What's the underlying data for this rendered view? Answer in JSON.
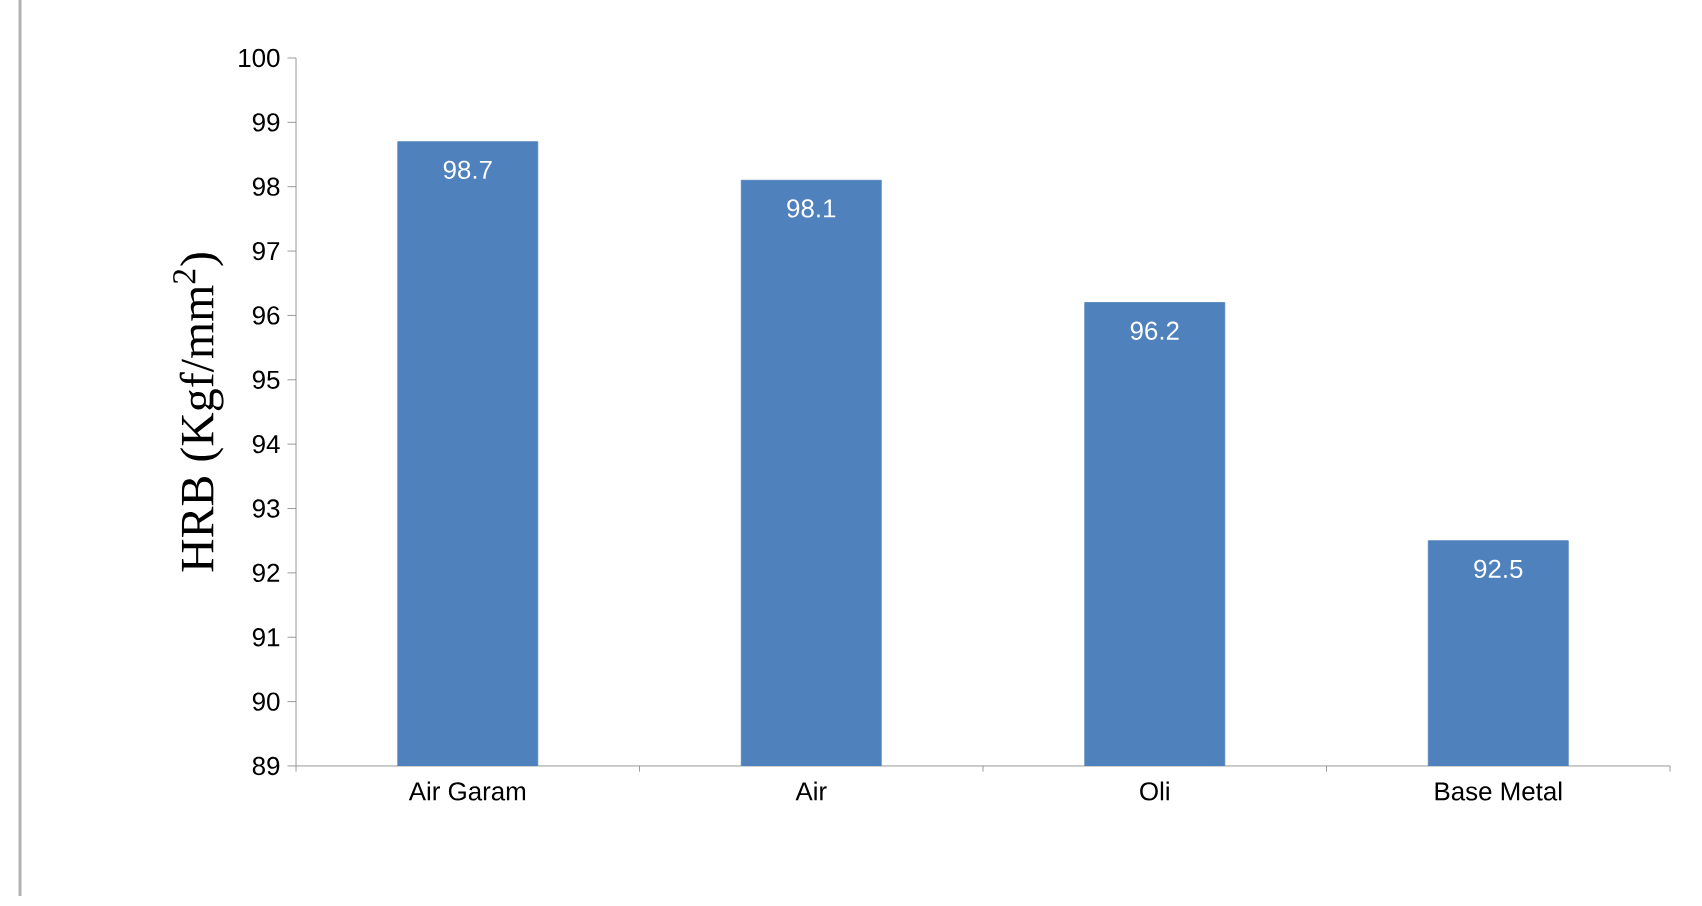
{
  "chart_data": {
    "type": "bar",
    "ylabel": "HRB (Kgf/mm$^{2}$)",
    "categories": [
      "Air Garam",
      "Air",
      "Oli",
      "Base Metal"
    ],
    "values": [
      98.7,
      98.1,
      96.2,
      92.5
    ],
    "color": "#4f81bd",
    "ylim": [
      89,
      100
    ],
    "yticks": [
      89,
      90,
      91,
      92,
      93,
      94,
      95,
      96,
      97,
      98,
      99,
      100
    ],
    "data_labels": true
  }
}
